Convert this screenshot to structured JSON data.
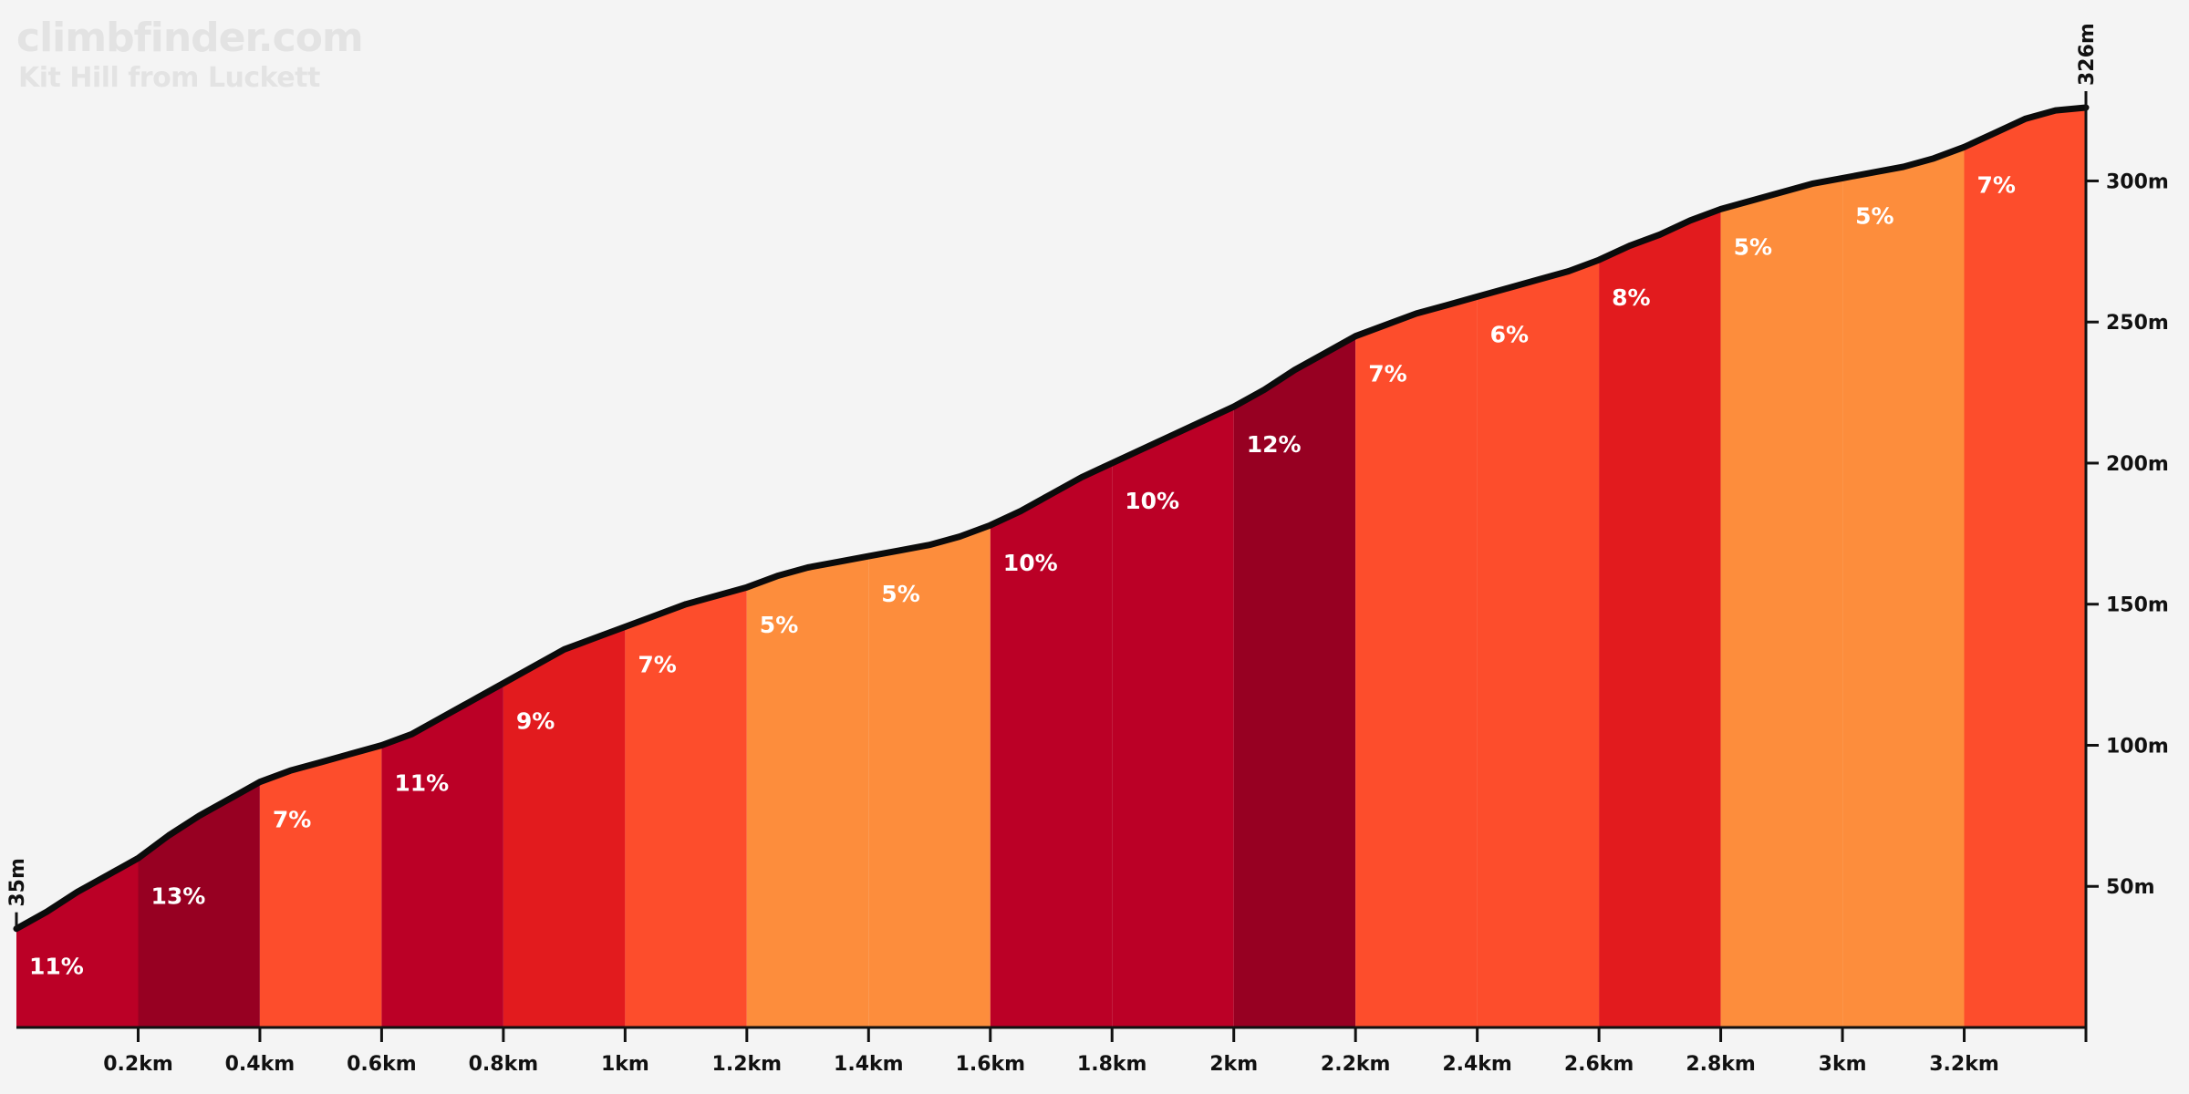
{
  "header": {
    "brand": "climbfinder.com",
    "climb_name": "Kit Hill from Luckett"
  },
  "chart_data": {
    "type": "area",
    "title": "Kit Hill from Luckett",
    "xlabel": "",
    "ylabel": "",
    "xlim_km": [
      0,
      3.4
    ],
    "ylim_m": [
      0,
      326
    ],
    "start_label": "35m",
    "end_label": "326m",
    "x_ticks": [
      "0.2km",
      "0.4km",
      "0.6km",
      "0.8km",
      "1km",
      "1.2km",
      "1.4km",
      "1.6km",
      "1.8km",
      "2km",
      "2.2km",
      "2.4km",
      "2.6km",
      "2.8km",
      "3km",
      "3.2km"
    ],
    "x_tick_values_km": [
      0.2,
      0.4,
      0.6,
      0.8,
      1.0,
      1.2,
      1.4,
      1.6,
      1.8,
      2.0,
      2.2,
      2.4,
      2.6,
      2.8,
      3.0,
      3.2
    ],
    "y_ticks": [
      "50m",
      "100m",
      "150m",
      "200m",
      "250m",
      "300m"
    ],
    "y_tick_values_m": [
      50,
      100,
      150,
      200,
      250,
      300
    ],
    "profile": {
      "distance_km": [
        0,
        0.05,
        0.1,
        0.15,
        0.2,
        0.25,
        0.3,
        0.35,
        0.4,
        0.45,
        0.5,
        0.55,
        0.6,
        0.65,
        0.7,
        0.75,
        0.8,
        0.85,
        0.9,
        0.95,
        1.0,
        1.05,
        1.1,
        1.15,
        1.2,
        1.25,
        1.3,
        1.35,
        1.4,
        1.45,
        1.5,
        1.55,
        1.6,
        1.65,
        1.7,
        1.75,
        1.8,
        1.85,
        1.9,
        1.95,
        2.0,
        2.05,
        2.1,
        2.15,
        2.2,
        2.25,
        2.3,
        2.35,
        2.4,
        2.45,
        2.5,
        2.55,
        2.6,
        2.65,
        2.7,
        2.75,
        2.8,
        2.85,
        2.9,
        2.95,
        3.0,
        3.05,
        3.1,
        3.15,
        3.2,
        3.25,
        3.3,
        3.35,
        3.4
      ],
      "elevation_m": [
        35,
        41,
        48,
        54,
        60,
        68,
        75,
        81,
        87,
        91,
        94,
        97,
        100,
        104,
        110,
        116,
        122,
        128,
        134,
        138,
        142,
        146,
        150,
        153,
        156,
        160,
        163,
        165,
        167,
        169,
        171,
        174,
        178,
        183,
        189,
        195,
        200,
        205,
        210,
        215,
        220,
        226,
        233,
        239,
        245,
        249,
        253,
        256,
        259,
        262,
        265,
        268,
        272,
        277,
        281,
        286,
        290,
        293,
        296,
        299,
        301,
        303,
        305,
        308,
        312,
        317,
        322,
        325,
        326
      ]
    },
    "segments": [
      {
        "from_km": 0.0,
        "to_km": 0.2,
        "grade_label": "11%",
        "color": "#bb0026"
      },
      {
        "from_km": 0.2,
        "to_km": 0.4,
        "grade_label": "13%",
        "color": "#970022"
      },
      {
        "from_km": 0.4,
        "to_km": 0.6,
        "grade_label": "7%",
        "color": "#fd4d2c"
      },
      {
        "from_km": 0.6,
        "to_km": 0.8,
        "grade_label": "11%",
        "color": "#bb0026"
      },
      {
        "from_km": 0.8,
        "to_km": 1.0,
        "grade_label": "9%",
        "color": "#e21b1e"
      },
      {
        "from_km": 1.0,
        "to_km": 1.2,
        "grade_label": "7%",
        "color": "#fd4d2c"
      },
      {
        "from_km": 1.2,
        "to_km": 1.4,
        "grade_label": "5%",
        "color": "#fd8d3c"
      },
      {
        "from_km": 1.4,
        "to_km": 1.6,
        "grade_label": "5%",
        "color": "#fd8d3c"
      },
      {
        "from_km": 1.6,
        "to_km": 1.8,
        "grade_label": "10%",
        "color": "#bb0026"
      },
      {
        "from_km": 1.8,
        "to_km": 2.0,
        "grade_label": "10%",
        "color": "#bb0026"
      },
      {
        "from_km": 2.0,
        "to_km": 2.2,
        "grade_label": "12%",
        "color": "#970022"
      },
      {
        "from_km": 2.2,
        "to_km": 2.4,
        "grade_label": "7%",
        "color": "#fd4d2c"
      },
      {
        "from_km": 2.4,
        "to_km": 2.6,
        "grade_label": "6%",
        "color": "#fd4d2c"
      },
      {
        "from_km": 2.6,
        "to_km": 2.8,
        "grade_label": "8%",
        "color": "#e21b1e"
      },
      {
        "from_km": 2.8,
        "to_km": 3.0,
        "grade_label": "5%",
        "color": "#fd8d3c"
      },
      {
        "from_km": 3.0,
        "to_km": 3.2,
        "grade_label": "5%",
        "color": "#fd8d3c"
      },
      {
        "from_km": 3.2,
        "to_km": 3.4,
        "grade_label": "7%",
        "color": "#fd4d2c"
      }
    ]
  }
}
